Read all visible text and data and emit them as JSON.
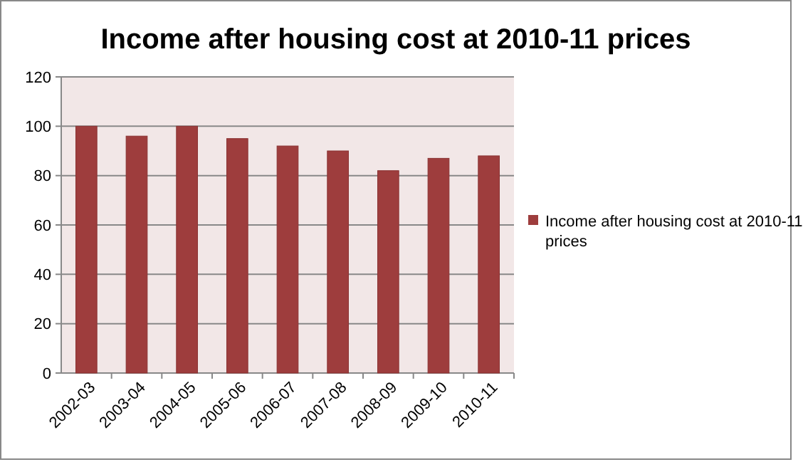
{
  "chart_data": {
    "type": "bar",
    "title": "Income after housing cost at 2010-11 prices",
    "categories": [
      "2002-03",
      "2003-04",
      "2004-05",
      "2005-06",
      "2006-07",
      "2007-08",
      "2008-09",
      "2009-10",
      "2010-11"
    ],
    "series": [
      {
        "name": "Income after housing cost at 2010-11 prices",
        "color": "#9e3d3d",
        "values": [
          100,
          96,
          100,
          95,
          92,
          90,
          82,
          87,
          88
        ]
      }
    ],
    "ylim": [
      0,
      120
    ],
    "yticks": [
      0,
      20,
      40,
      60,
      80,
      100,
      120
    ],
    "grid": "y",
    "legend": "right"
  }
}
